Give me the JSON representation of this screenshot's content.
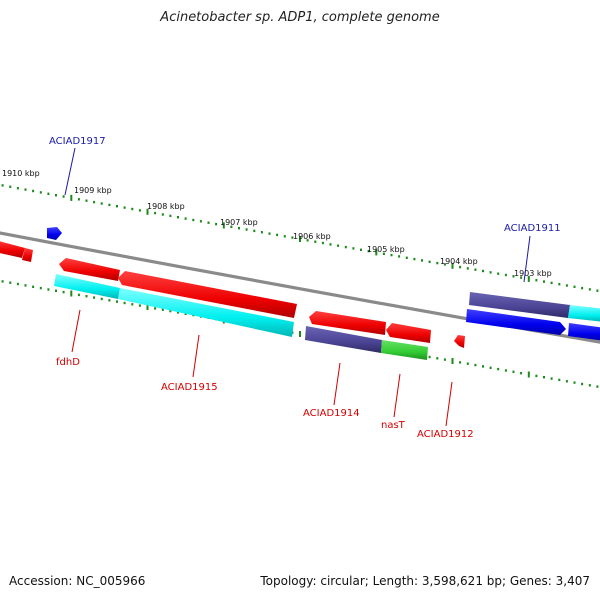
{
  "title": "Acinetobacter sp. ADP1, complete genome",
  "footer": {
    "accession": "Accession: NC_005966",
    "summary": "Topology: circular; Length: 3,598,621 bp; Genes: 3,407"
  },
  "ticks": [
    {
      "label": "1910 kbp"
    },
    {
      "label": "1909 kbp"
    },
    {
      "label": "1908 kbp"
    },
    {
      "label": "1907 kbp"
    },
    {
      "label": "1906 kbp"
    },
    {
      "label": "1905 kbp"
    },
    {
      "label": "1904 kbp"
    },
    {
      "label": "1903 kbp"
    }
  ],
  "genes": [
    {
      "label": "ACIAD1917",
      "strand": "forward"
    },
    {
      "label": "ACIAD1911",
      "strand": "forward"
    },
    {
      "label": "fdhD",
      "strand": "reverse"
    },
    {
      "label": "ACIAD1915",
      "strand": "reverse"
    },
    {
      "label": "ACIAD1914",
      "strand": "reverse"
    },
    {
      "label": "nasT",
      "strand": "reverse"
    },
    {
      "label": "ACIAD1912",
      "strand": "reverse"
    }
  ],
  "colors": {
    "cds_red": "#ff0000",
    "cds_blue": "#0000ff",
    "cyan": "#00ffff",
    "purple": "#4b4494",
    "green": "#33cc33",
    "backbone": "#808080",
    "tick": "#1a8a1a",
    "label_red": "#d40000",
    "label_blue": "#1a1aa8"
  }
}
